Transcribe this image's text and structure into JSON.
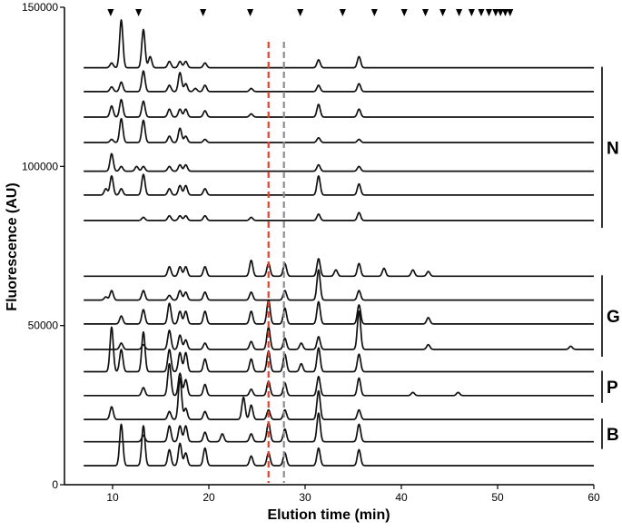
{
  "chart_data": {
    "type": "line",
    "xlabel": "Elution time (min)",
    "ylabel": "Fluorescence (AU)",
    "xlim": [
      5,
      60
    ],
    "ylim": [
      0,
      150000
    ],
    "x_ticks": [
      10,
      20,
      30,
      40,
      50,
      60
    ],
    "y_ticks": [
      0,
      50000,
      100000,
      150000
    ],
    "y_tick_labels": [
      "0",
      "50000",
      "100000",
      "150000"
    ],
    "grid": false,
    "reference_lines": [
      {
        "x": 26.2,
        "color": "#e8402c",
        "style": "dashed"
      },
      {
        "x": 27.8,
        "color": "#8c8c8c",
        "style": "dashed"
      }
    ],
    "marker_positions": [
      9.8,
      12.7,
      19.4,
      24.3,
      29.5,
      33.9,
      37.2,
      40.3,
      42.5,
      44.3,
      46.0,
      47.3,
      48.3,
      49.1,
      49.8,
      50.3,
      50.8,
      51.3
    ],
    "peak_positions": [
      9.3,
      9.9,
      10.9,
      12.5,
      13.2,
      13.9,
      15.9,
      17.0,
      17.6,
      18.6,
      19.6,
      21.4,
      23.6,
      24.4,
      26.2,
      27.9,
      29.6,
      31.4,
      33.2,
      34.6,
      35.6,
      38.2,
      41.2,
      42.8,
      45.9,
      57.6
    ],
    "groups": [
      {
        "label": "N",
        "from_trace": 0,
        "to_trace": 6
      },
      {
        "label": "G",
        "from_trace": 7,
        "to_trace": 10
      },
      {
        "label": "P",
        "from_trace": 11,
        "to_trace": 12
      },
      {
        "label": "B",
        "from_trace": 13,
        "to_trace": 14
      }
    ],
    "series": [
      {
        "baseline": 131000,
        "heights": [
          0,
          1500,
          15000,
          0,
          12000,
          3500,
          2000,
          2000,
          2000,
          0,
          1500,
          0,
          0,
          0,
          0,
          0,
          0,
          2500,
          0,
          0,
          3500,
          0,
          0,
          0,
          0,
          0
        ]
      },
      {
        "baseline": 123500,
        "heights": [
          0,
          1500,
          3000,
          0,
          6500,
          0,
          2000,
          6000,
          2500,
          1000,
          2000,
          0,
          0,
          1000,
          0,
          0,
          0,
          2000,
          0,
          0,
          2500,
          0,
          0,
          0,
          0,
          0
        ]
      },
      {
        "baseline": 115500,
        "heights": [
          0,
          3500,
          5500,
          0,
          5000,
          0,
          2500,
          2500,
          2500,
          0,
          2000,
          0,
          0,
          1000,
          0,
          0,
          0,
          4000,
          0,
          0,
          2500,
          0,
          0,
          0,
          0,
          0
        ]
      },
      {
        "baseline": 107500,
        "heights": [
          0,
          1000,
          7500,
          0,
          7000,
          0,
          2000,
          4500,
          2000,
          0,
          1000,
          0,
          0,
          0,
          0,
          0,
          0,
          1500,
          0,
          0,
          1000,
          0,
          0,
          0,
          0,
          0
        ]
      },
      {
        "baseline": 98500,
        "heights": [
          0,
          5500,
          1500,
          1500,
          1500,
          0,
          1500,
          2000,
          2000,
          0,
          0,
          0,
          0,
          0,
          0,
          0,
          0,
          2000,
          0,
          0,
          1500,
          0,
          0,
          0,
          0,
          0
        ]
      },
      {
        "baseline": 91000,
        "heights": [
          2000,
          6000,
          2000,
          0,
          6500,
          0,
          2000,
          3000,
          3000,
          0,
          2000,
          0,
          0,
          0,
          0,
          0,
          0,
          6000,
          0,
          0,
          3500,
          0,
          0,
          0,
          0,
          0
        ]
      },
      {
        "baseline": 83000,
        "heights": [
          0,
          0,
          0,
          0,
          1000,
          0,
          1500,
          1500,
          1500,
          0,
          1500,
          0,
          0,
          1000,
          0,
          0,
          0,
          2000,
          0,
          0,
          2500,
          0,
          0,
          0,
          0,
          0
        ]
      },
      {
        "baseline": 65500,
        "heights": [
          0,
          0,
          0,
          0,
          0,
          0,
          3000,
          3000,
          3000,
          0,
          3000,
          0,
          0,
          5000,
          4000,
          4000,
          0,
          5500,
          2000,
          0,
          4000,
          2500,
          2000,
          1500,
          0,
          0
        ]
      },
      {
        "baseline": 58000,
        "heights": [
          1000,
          3000,
          0,
          0,
          3000,
          0,
          1500,
          3000,
          2500,
          0,
          2500,
          0,
          0,
          2500,
          0,
          3000,
          0,
          9500,
          0,
          0,
          3000,
          0,
          0,
          0,
          0,
          0
        ]
      },
      {
        "baseline": 50500,
        "heights": [
          0,
          0,
          2500,
          0,
          4500,
          0,
          6500,
          4000,
          4000,
          0,
          4000,
          0,
          0,
          4000,
          7500,
          5000,
          0,
          7000,
          0,
          0,
          6000,
          0,
          0,
          2000,
          0,
          0
        ]
      },
      {
        "baseline": 42500,
        "heights": [
          0,
          0,
          2000,
          0,
          1500,
          0,
          6000,
          4500,
          3000,
          0,
          2000,
          0,
          0,
          2500,
          7000,
          3500,
          2000,
          4000,
          0,
          0,
          12000,
          0,
          0,
          1500,
          0,
          1000
        ]
      },
      {
        "baseline": 35500,
        "heights": [
          0,
          14000,
          7000,
          0,
          12500,
          0,
          7000,
          6000,
          6000,
          0,
          4000,
          0,
          0,
          4000,
          6500,
          5500,
          2500,
          7500,
          0,
          0,
          5500,
          0,
          0,
          0,
          0,
          0
        ]
      },
      {
        "baseline": 28000,
        "heights": [
          0,
          0,
          0,
          0,
          2500,
          0,
          10000,
          7000,
          5000,
          0,
          3500,
          0,
          0,
          2000,
          4500,
          4000,
          0,
          6000,
          0,
          0,
          5500,
          0,
          1000,
          0,
          1000,
          0
        ]
      },
      {
        "baseline": 20500,
        "heights": [
          0,
          4000,
          0,
          0,
          0,
          0,
          2500,
          13000,
          3500,
          0,
          2500,
          0,
          7000,
          4500,
          3000,
          3000,
          0,
          9000,
          0,
          0,
          3000,
          0,
          0,
          0,
          0,
          0
        ]
      },
      {
        "baseline": 13500,
        "heights": [
          0,
          0,
          0,
          0,
          2000,
          0,
          5000,
          5000,
          5000,
          0,
          3000,
          2500,
          0,
          2500,
          6000,
          4000,
          0,
          9000,
          0,
          0,
          5500,
          0,
          0,
          0,
          0,
          0
        ]
      },
      {
        "baseline": 6000,
        "heights": [
          0,
          0,
          13000,
          0,
          12500,
          0,
          5000,
          7000,
          4000,
          0,
          5500,
          0,
          0,
          3000,
          4000,
          4000,
          0,
          5500,
          0,
          0,
          5000,
          0,
          0,
          0,
          0,
          0
        ]
      }
    ]
  }
}
